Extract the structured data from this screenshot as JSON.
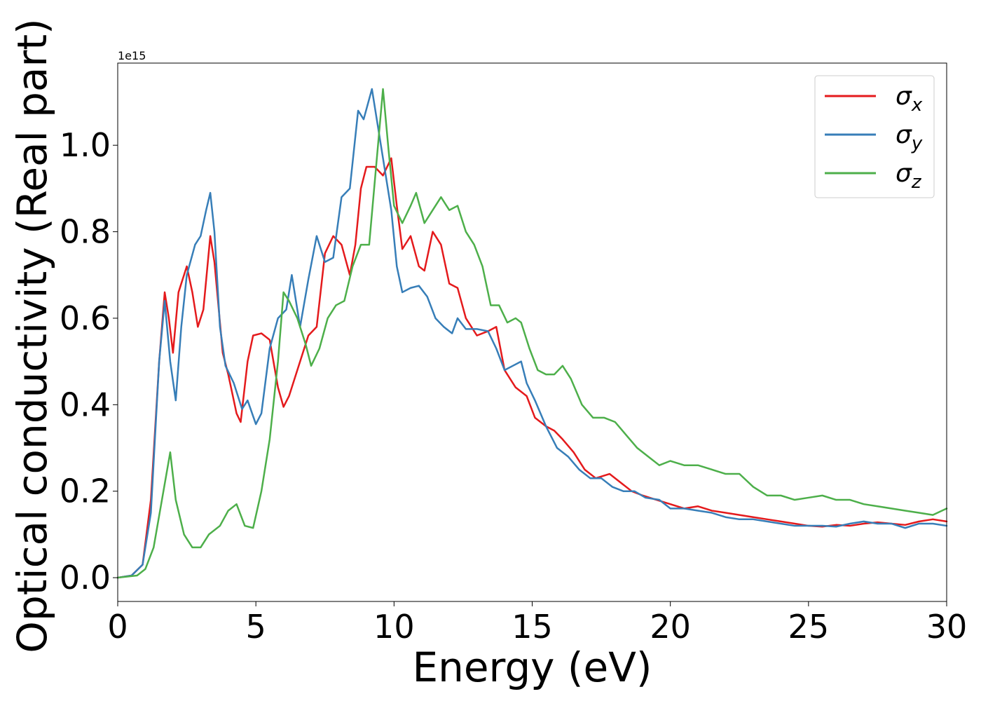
{
  "chart_data": {
    "type": "line",
    "title": "",
    "xlabel": "Energy (eV)",
    "ylabel": "Optical conductivity (Real part)",
    "offset_label": "1e15",
    "xlim": [
      0,
      30
    ],
    "ylim": [
      -0.055,
      1.19
    ],
    "x_ticks": [
      0,
      5,
      10,
      15,
      20,
      25,
      30
    ],
    "x_tick_labels": [
      "0",
      "5",
      "10",
      "15",
      "20",
      "25",
      "30"
    ],
    "y_ticks": [
      0.0,
      0.2,
      0.4,
      0.6,
      0.8,
      1.0
    ],
    "y_tick_labels": [
      "0.0",
      "0.2",
      "0.4",
      "0.6",
      "0.8",
      "1.0"
    ],
    "grid": false,
    "legend_position": "top-right",
    "series": [
      {
        "name": "σx",
        "legend_base": "σ",
        "legend_sub": "x",
        "color": "#e41a1c",
        "points": [
          [
            0,
            0
          ],
          [
            0.5,
            0.005
          ],
          [
            0.9,
            0.03
          ],
          [
            1.2,
            0.18
          ],
          [
            1.5,
            0.5
          ],
          [
            1.7,
            0.66
          ],
          [
            1.85,
            0.6
          ],
          [
            2.0,
            0.52
          ],
          [
            2.2,
            0.66
          ],
          [
            2.5,
            0.72
          ],
          [
            2.7,
            0.66
          ],
          [
            2.9,
            0.58
          ],
          [
            3.1,
            0.62
          ],
          [
            3.35,
            0.79
          ],
          [
            3.5,
            0.73
          ],
          [
            3.8,
            0.52
          ],
          [
            4.0,
            0.47
          ],
          [
            4.3,
            0.38
          ],
          [
            4.45,
            0.36
          ],
          [
            4.7,
            0.5
          ],
          [
            4.9,
            0.56
          ],
          [
            5.2,
            0.565
          ],
          [
            5.5,
            0.55
          ],
          [
            5.8,
            0.44
          ],
          [
            6.0,
            0.395
          ],
          [
            6.2,
            0.42
          ],
          [
            6.5,
            0.48
          ],
          [
            6.9,
            0.56
          ],
          [
            7.2,
            0.58
          ],
          [
            7.5,
            0.75
          ],
          [
            7.8,
            0.79
          ],
          [
            8.1,
            0.77
          ],
          [
            8.4,
            0.7
          ],
          [
            8.6,
            0.77
          ],
          [
            8.8,
            0.9
          ],
          [
            9.0,
            0.95
          ],
          [
            9.3,
            0.95
          ],
          [
            9.6,
            0.93
          ],
          [
            9.9,
            0.97
          ],
          [
            10.1,
            0.86
          ],
          [
            10.3,
            0.76
          ],
          [
            10.6,
            0.79
          ],
          [
            10.9,
            0.72
          ],
          [
            11.1,
            0.71
          ],
          [
            11.4,
            0.8
          ],
          [
            11.7,
            0.77
          ],
          [
            12.0,
            0.68
          ],
          [
            12.3,
            0.67
          ],
          [
            12.6,
            0.6
          ],
          [
            13.0,
            0.56
          ],
          [
            13.4,
            0.57
          ],
          [
            13.7,
            0.58
          ],
          [
            14.0,
            0.48
          ],
          [
            14.4,
            0.44
          ],
          [
            14.8,
            0.42
          ],
          [
            15.1,
            0.37
          ],
          [
            15.5,
            0.35
          ],
          [
            15.8,
            0.34
          ],
          [
            16.1,
            0.32
          ],
          [
            16.5,
            0.29
          ],
          [
            16.9,
            0.25
          ],
          [
            17.3,
            0.23
          ],
          [
            17.8,
            0.24
          ],
          [
            18.2,
            0.22
          ],
          [
            18.6,
            0.2
          ],
          [
            19.0,
            0.19
          ],
          [
            19.5,
            0.18
          ],
          [
            20.0,
            0.17
          ],
          [
            20.5,
            0.16
          ],
          [
            21.0,
            0.165
          ],
          [
            21.5,
            0.155
          ],
          [
            22.0,
            0.15
          ],
          [
            22.5,
            0.145
          ],
          [
            23.0,
            0.14
          ],
          [
            23.5,
            0.135
          ],
          [
            24.0,
            0.13
          ],
          [
            25.0,
            0.12
          ],
          [
            25.5,
            0.118
          ],
          [
            26.0,
            0.122
          ],
          [
            26.5,
            0.12
          ],
          [
            27.0,
            0.125
          ],
          [
            27.5,
            0.128
          ],
          [
            28.0,
            0.125
          ],
          [
            28.5,
            0.122
          ],
          [
            29.0,
            0.13
          ],
          [
            29.5,
            0.135
          ],
          [
            30.0,
            0.13
          ]
        ]
      },
      {
        "name": "σy",
        "legend_base": "σ",
        "legend_sub": "y",
        "color": "#377eb8",
        "points": [
          [
            0,
            0
          ],
          [
            0.5,
            0.005
          ],
          [
            0.9,
            0.03
          ],
          [
            1.2,
            0.15
          ],
          [
            1.5,
            0.5
          ],
          [
            1.7,
            0.64
          ],
          [
            1.9,
            0.5
          ],
          [
            2.1,
            0.41
          ],
          [
            2.3,
            0.58
          ],
          [
            2.5,
            0.7
          ],
          [
            2.8,
            0.77
          ],
          [
            3.0,
            0.79
          ],
          [
            3.2,
            0.85
          ],
          [
            3.35,
            0.89
          ],
          [
            3.5,
            0.8
          ],
          [
            3.7,
            0.58
          ],
          [
            3.9,
            0.49
          ],
          [
            4.2,
            0.45
          ],
          [
            4.5,
            0.39
          ],
          [
            4.7,
            0.41
          ],
          [
            5.0,
            0.355
          ],
          [
            5.2,
            0.38
          ],
          [
            5.5,
            0.53
          ],
          [
            5.8,
            0.6
          ],
          [
            6.1,
            0.62
          ],
          [
            6.3,
            0.7
          ],
          [
            6.6,
            0.58
          ],
          [
            6.9,
            0.69
          ],
          [
            7.2,
            0.79
          ],
          [
            7.5,
            0.73
          ],
          [
            7.8,
            0.74
          ],
          [
            8.1,
            0.88
          ],
          [
            8.4,
            0.9
          ],
          [
            8.7,
            1.08
          ],
          [
            8.9,
            1.06
          ],
          [
            9.2,
            1.13
          ],
          [
            9.4,
            1.05
          ],
          [
            9.6,
            0.97
          ],
          [
            9.9,
            0.85
          ],
          [
            10.1,
            0.72
          ],
          [
            10.3,
            0.66
          ],
          [
            10.6,
            0.67
          ],
          [
            10.9,
            0.675
          ],
          [
            11.2,
            0.65
          ],
          [
            11.5,
            0.6
          ],
          [
            11.8,
            0.58
          ],
          [
            12.1,
            0.565
          ],
          [
            12.3,
            0.6
          ],
          [
            12.6,
            0.575
          ],
          [
            13.0,
            0.575
          ],
          [
            13.4,
            0.57
          ],
          [
            13.7,
            0.53
          ],
          [
            14.0,
            0.48
          ],
          [
            14.3,
            0.49
          ],
          [
            14.6,
            0.5
          ],
          [
            14.8,
            0.45
          ],
          [
            15.1,
            0.41
          ],
          [
            15.5,
            0.35
          ],
          [
            15.9,
            0.3
          ],
          [
            16.3,
            0.28
          ],
          [
            16.7,
            0.25
          ],
          [
            17.1,
            0.23
          ],
          [
            17.5,
            0.23
          ],
          [
            17.9,
            0.21
          ],
          [
            18.3,
            0.2
          ],
          [
            18.7,
            0.2
          ],
          [
            19.1,
            0.185
          ],
          [
            19.6,
            0.18
          ],
          [
            20.0,
            0.16
          ],
          [
            20.5,
            0.16
          ],
          [
            21.0,
            0.155
          ],
          [
            21.5,
            0.15
          ],
          [
            22.0,
            0.14
          ],
          [
            22.5,
            0.135
          ],
          [
            23.0,
            0.135
          ],
          [
            23.5,
            0.13
          ],
          [
            24.0,
            0.125
          ],
          [
            24.5,
            0.12
          ],
          [
            25.0,
            0.12
          ],
          [
            25.5,
            0.12
          ],
          [
            26.0,
            0.118
          ],
          [
            26.5,
            0.125
          ],
          [
            27.0,
            0.13
          ],
          [
            27.5,
            0.125
          ],
          [
            28.0,
            0.125
          ],
          [
            28.5,
            0.115
          ],
          [
            29.0,
            0.125
          ],
          [
            29.5,
            0.125
          ],
          [
            30.0,
            0.12
          ]
        ]
      },
      {
        "name": "σz",
        "legend_base": "σ",
        "legend_sub": "z",
        "color": "#4daf4a",
        "points": [
          [
            0,
            0
          ],
          [
            0.7,
            0.005
          ],
          [
            1.0,
            0.02
          ],
          [
            1.3,
            0.07
          ],
          [
            1.6,
            0.18
          ],
          [
            1.9,
            0.29
          ],
          [
            2.1,
            0.18
          ],
          [
            2.4,
            0.1
          ],
          [
            2.7,
            0.07
          ],
          [
            3.0,
            0.07
          ],
          [
            3.3,
            0.1
          ],
          [
            3.7,
            0.12
          ],
          [
            4.0,
            0.155
          ],
          [
            4.3,
            0.17
          ],
          [
            4.6,
            0.12
          ],
          [
            4.9,
            0.115
          ],
          [
            5.2,
            0.2
          ],
          [
            5.5,
            0.32
          ],
          [
            5.8,
            0.5
          ],
          [
            6.0,
            0.66
          ],
          [
            6.2,
            0.64
          ],
          [
            6.5,
            0.6
          ],
          [
            6.8,
            0.54
          ],
          [
            7.0,
            0.49
          ],
          [
            7.3,
            0.53
          ],
          [
            7.6,
            0.6
          ],
          [
            7.9,
            0.63
          ],
          [
            8.2,
            0.64
          ],
          [
            8.5,
            0.72
          ],
          [
            8.8,
            0.77
          ],
          [
            9.1,
            0.77
          ],
          [
            9.35,
            0.95
          ],
          [
            9.6,
            1.13
          ],
          [
            9.8,
            0.99
          ],
          [
            10.0,
            0.86
          ],
          [
            10.3,
            0.82
          ],
          [
            10.6,
            0.86
          ],
          [
            10.8,
            0.89
          ],
          [
            11.1,
            0.82
          ],
          [
            11.4,
            0.85
          ],
          [
            11.7,
            0.88
          ],
          [
            12.0,
            0.85
          ],
          [
            12.3,
            0.86
          ],
          [
            12.6,
            0.8
          ],
          [
            12.9,
            0.77
          ],
          [
            13.2,
            0.72
          ],
          [
            13.5,
            0.63
          ],
          [
            13.8,
            0.63
          ],
          [
            14.1,
            0.59
          ],
          [
            14.4,
            0.6
          ],
          [
            14.6,
            0.59
          ],
          [
            14.9,
            0.53
          ],
          [
            15.2,
            0.48
          ],
          [
            15.5,
            0.47
          ],
          [
            15.8,
            0.47
          ],
          [
            16.1,
            0.49
          ],
          [
            16.4,
            0.46
          ],
          [
            16.8,
            0.4
          ],
          [
            17.2,
            0.37
          ],
          [
            17.6,
            0.37
          ],
          [
            18.0,
            0.36
          ],
          [
            18.4,
            0.33
          ],
          [
            18.8,
            0.3
          ],
          [
            19.2,
            0.28
          ],
          [
            19.6,
            0.26
          ],
          [
            20.0,
            0.27
          ],
          [
            20.5,
            0.26
          ],
          [
            21.0,
            0.26
          ],
          [
            21.5,
            0.25
          ],
          [
            22.0,
            0.24
          ],
          [
            22.5,
            0.24
          ],
          [
            23.0,
            0.21
          ],
          [
            23.5,
            0.19
          ],
          [
            24.0,
            0.19
          ],
          [
            24.5,
            0.18
          ],
          [
            25.0,
            0.185
          ],
          [
            25.5,
            0.19
          ],
          [
            26.0,
            0.18
          ],
          [
            26.5,
            0.18
          ],
          [
            27.0,
            0.17
          ],
          [
            27.5,
            0.165
          ],
          [
            28.0,
            0.16
          ],
          [
            28.5,
            0.155
          ],
          [
            29.0,
            0.15
          ],
          [
            29.5,
            0.145
          ],
          [
            30.0,
            0.16
          ]
        ]
      }
    ]
  }
}
